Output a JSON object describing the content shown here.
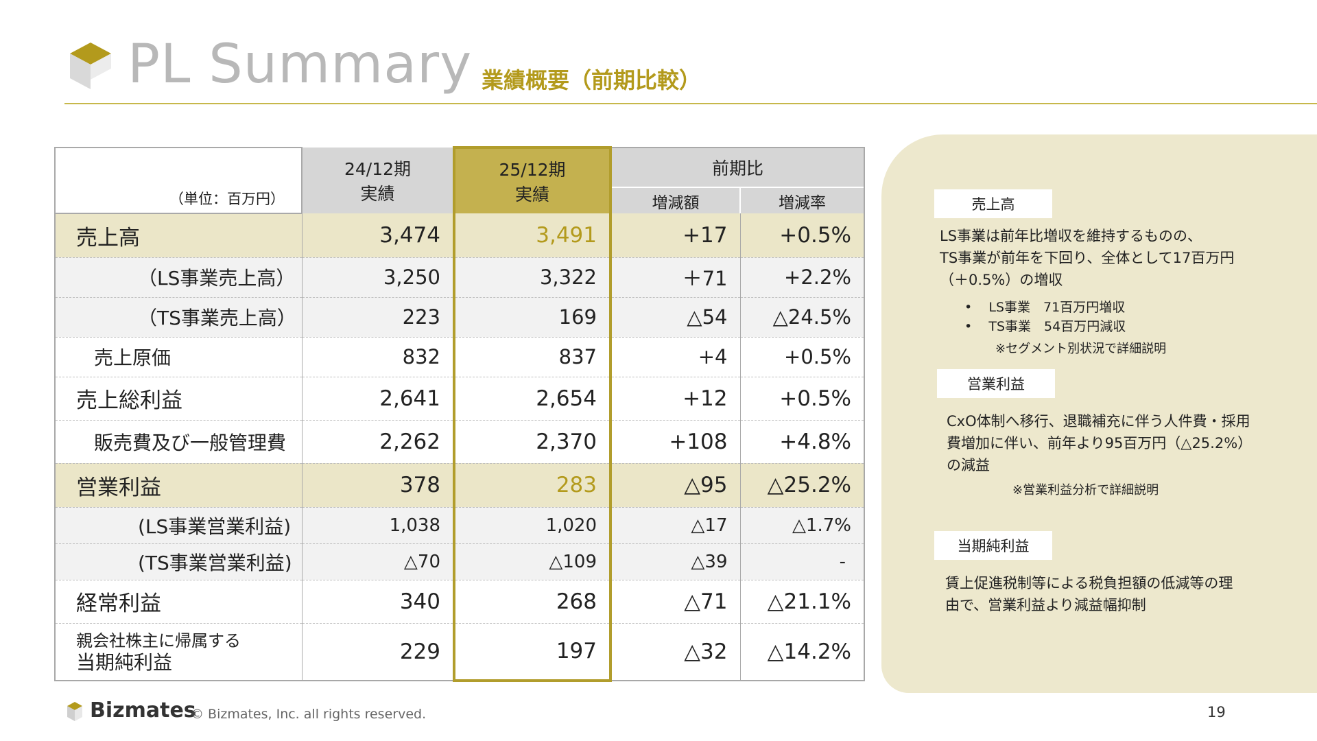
{
  "header": {
    "title": "PL Summary",
    "subtitle": "業績概要（前期比較）"
  },
  "table": {
    "unit_label": "（単位：百万円）",
    "col_prev": [
      "24/12期",
      "実績"
    ],
    "col_curr": [
      "25/12期",
      "実績"
    ],
    "col_change_group": "前期比",
    "col_change_amount": "増減額",
    "col_change_rate": "増減率",
    "rows": [
      {
        "label": "売上高",
        "prev": "3,474",
        "curr": "3,491",
        "diff": "+17",
        "rate": "+0.5%"
      },
      {
        "label": "（LS事業売上高）",
        "prev": "3,250",
        "curr": "3,322",
        "diff": "＋71",
        "rate": "+2.2%"
      },
      {
        "label": "（TS事業売上高）",
        "prev": "223",
        "curr": "169",
        "diff": "△54",
        "rate": "△24.5%"
      },
      {
        "label": "売上原価",
        "prev": "832",
        "curr": "837",
        "diff": "+4",
        "rate": "+0.5%"
      },
      {
        "label": "売上総利益",
        "prev": "2,641",
        "curr": "2,654",
        "diff": "+12",
        "rate": "+0.5%"
      },
      {
        "label": "販売費及び一般管理費",
        "prev": "2,262",
        "curr": "2,370",
        "diff": "+108",
        "rate": "+4.8%"
      },
      {
        "label": "営業利益",
        "prev": "378",
        "curr": "283",
        "diff": "△95",
        "rate": "△25.2%"
      },
      {
        "label": "(LS事業営業利益)",
        "prev": "1,038",
        "curr": "1,020",
        "diff": "△17",
        "rate": "△1.7%"
      },
      {
        "label": "(TS事業営業利益)",
        "prev": "△70",
        "curr": "△109",
        "diff": "△39",
        "rate": "-"
      },
      {
        "label": "経常利益",
        "prev": "340",
        "curr": "268",
        "diff": "△71",
        "rate": "△21.1%"
      },
      {
        "label_line1": "親会社株主に帰属する",
        "label_line2": "当期純利益",
        "prev": "229",
        "curr": "197",
        "diff": "△32",
        "rate": "△14.2%"
      }
    ]
  },
  "panel": {
    "sales": {
      "tag": "売上高",
      "lines": [
        "LS事業は前年比増収を維持するものの、",
        "TS事業が前年を下回り、全体として17百万円",
        "（＋0.5%）の増収"
      ],
      "bullets": [
        "LS事業　71百万円増収",
        "TS事業　54百万円減収"
      ],
      "note": "※セグメント別状況で詳細説明"
    },
    "operating": {
      "tag": "営業利益",
      "lines": [
        "CxO体制へ移行、退職補充に伴う人件費・採用",
        "費増加に伴い、前年より95百万円（△25.2%）",
        "の減益"
      ],
      "note": "※営業利益分析で詳細説明"
    },
    "net": {
      "tag": "当期純利益",
      "lines": [
        "賃上促進税制等による税負担額の低減等の理",
        "由で、営業利益より減益幅抑制"
      ]
    }
  },
  "footer": {
    "brand": "Bizmates",
    "copyright": "© Bizmates, Inc. all rights reserved.",
    "page": "19"
  },
  "colors": {
    "accent_gold": "#b39a1c",
    "highlight_band": "#ebe6c8",
    "panel_bg": "#ede8cd",
    "header_grey": "#d6d6d6"
  }
}
